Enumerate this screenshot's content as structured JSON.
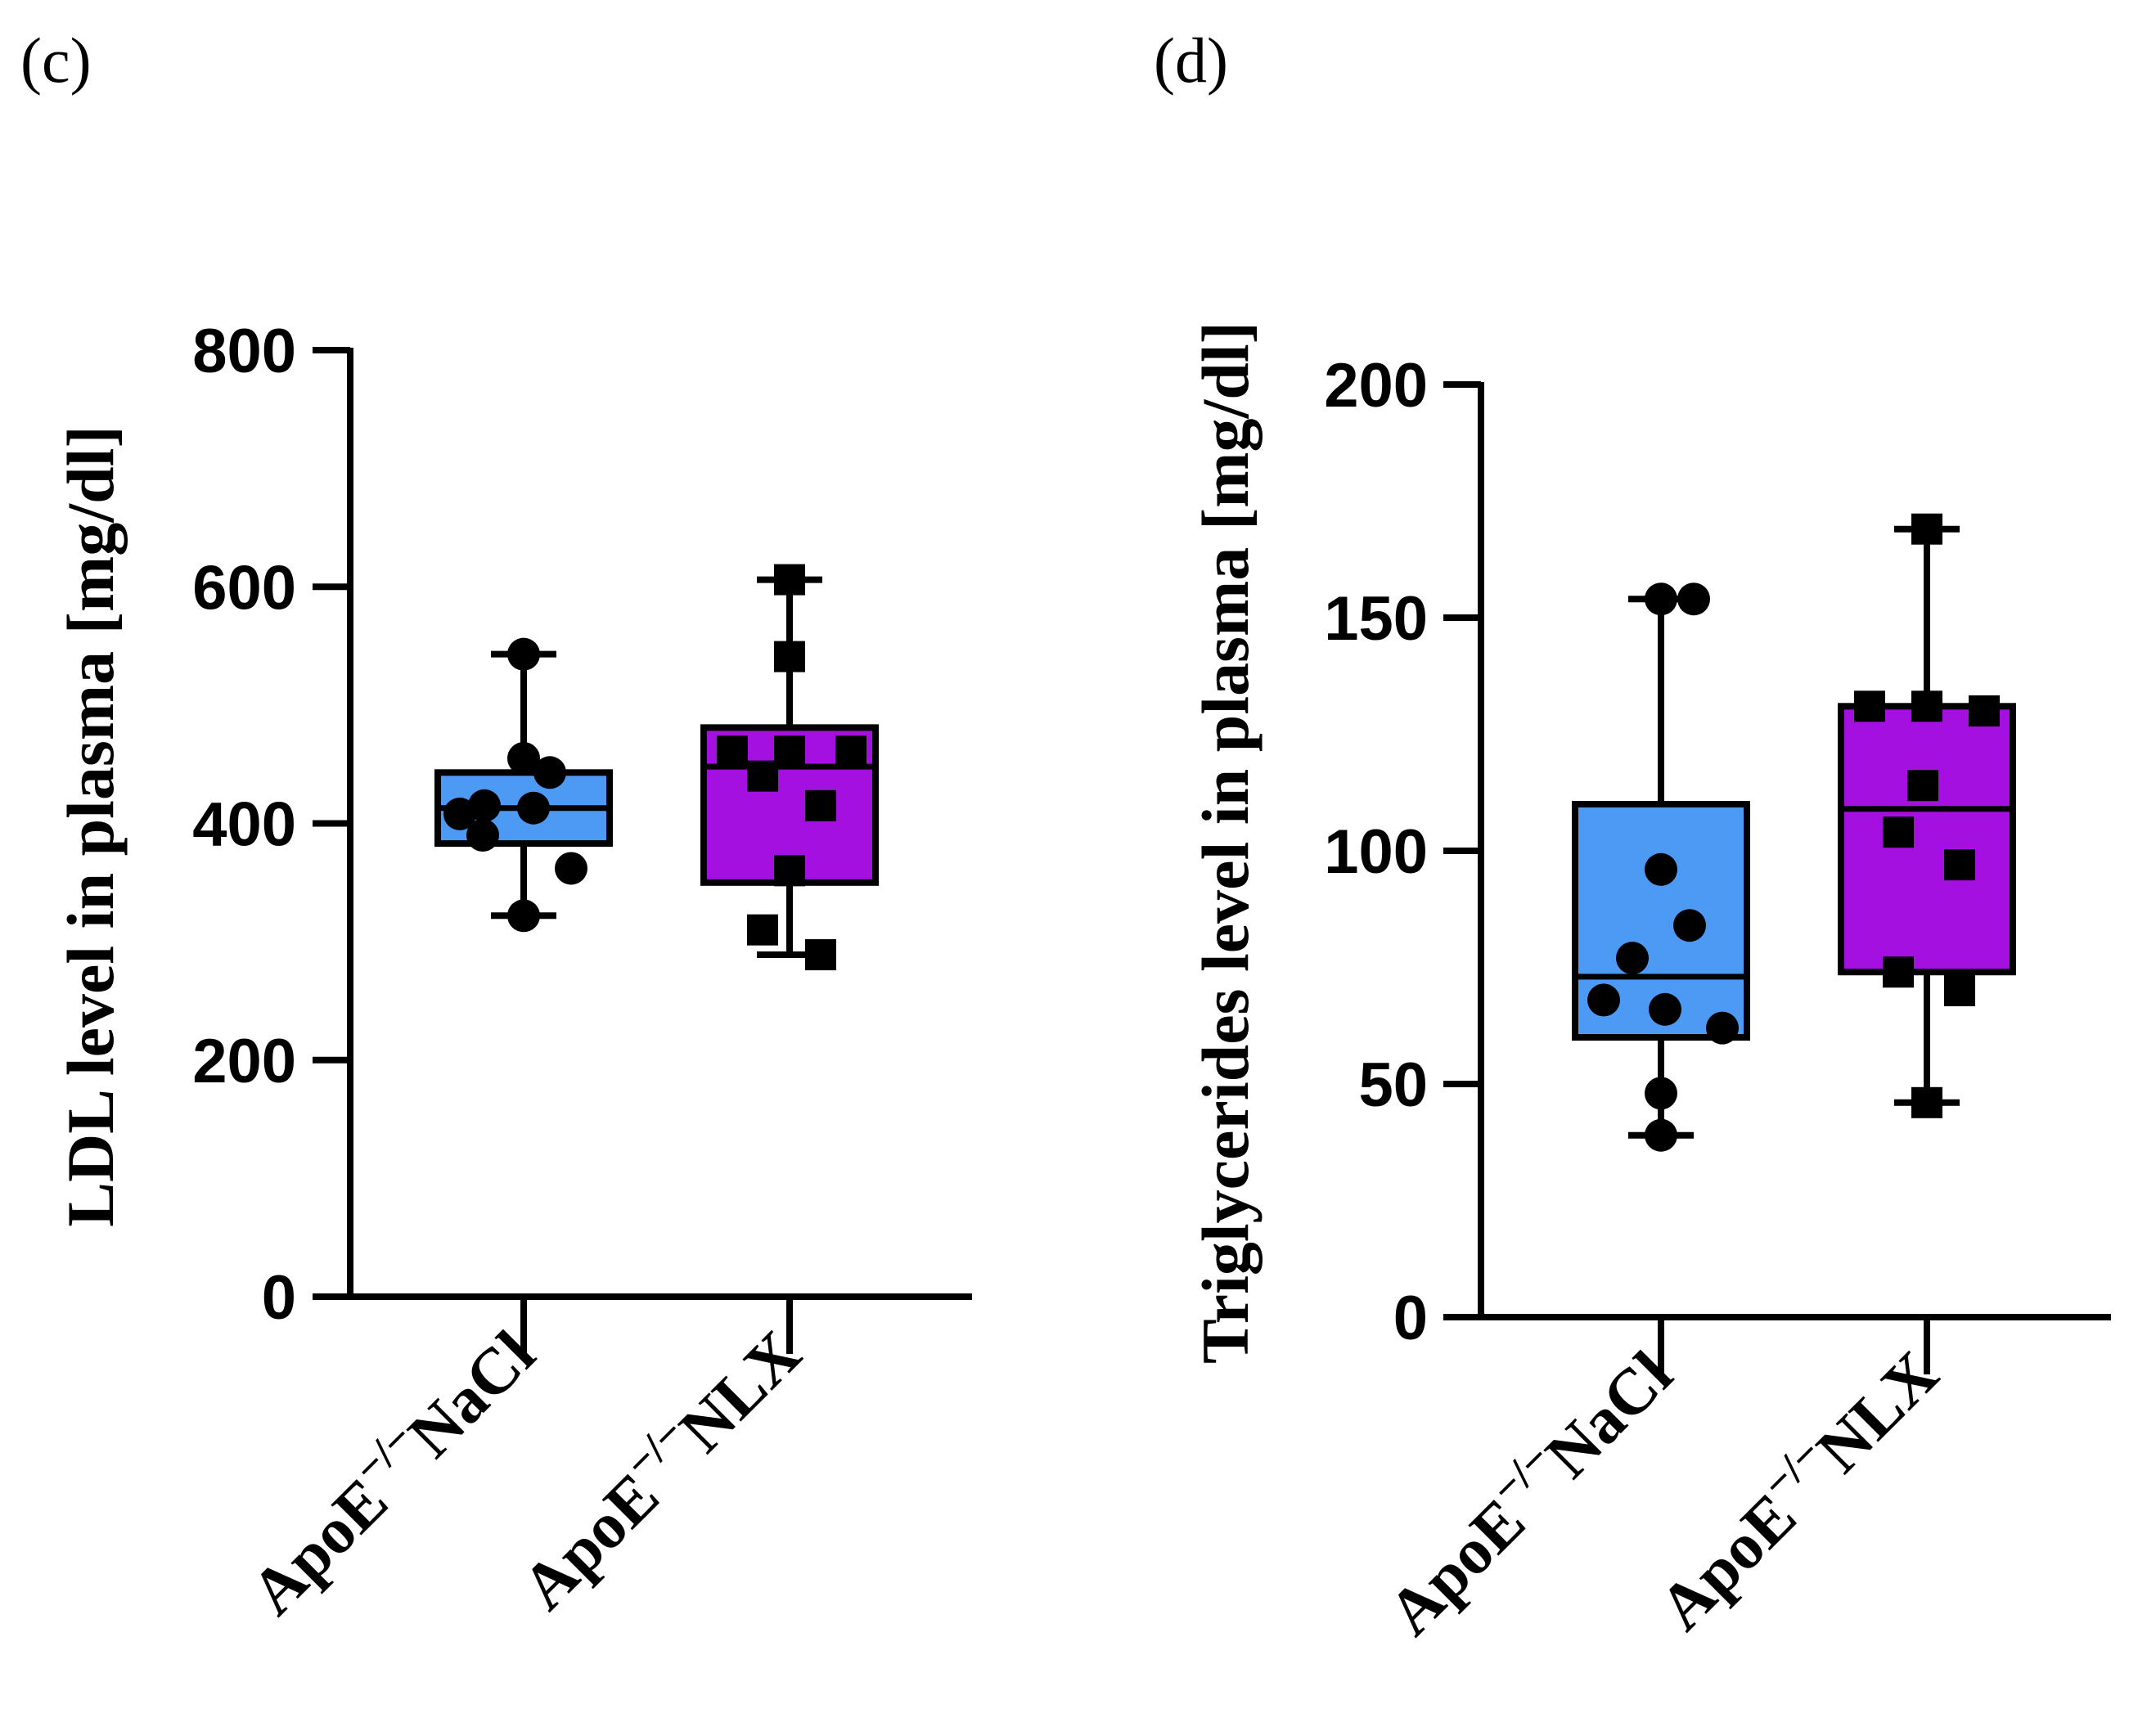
{
  "chart_data": [
    {
      "type": "box",
      "panel_label": "(c)",
      "ylabel": "LDL level in plasma [mg/dl]",
      "ylim": [
        0,
        800
      ],
      "yticks": [
        0,
        200,
        400,
        600,
        800
      ],
      "categories": [
        {
          "base": "ApoE",
          "sup": "−/−",
          "suffix": "NaCl"
        },
        {
          "base": "ApoE",
          "sup": "−/−",
          "suffix": "NLX"
        }
      ],
      "series": [
        {
          "name": "ApoE−/− NaCl",
          "color": "#4d9af5",
          "marker": "circle",
          "min": 322,
          "q1": 383,
          "median": 413,
          "q3": 443,
          "max": 543,
          "points": [
            543,
            455,
            443,
            415,
            413,
            408,
            390,
            362,
            322
          ]
        },
        {
          "name": "ApoE−/− NLX",
          "color": "#a410e0",
          "marker": "square",
          "min": 289,
          "q1": 350,
          "median": 448,
          "q3": 481,
          "max": 606,
          "points": [
            606,
            541,
            461,
            461,
            461,
            440,
            415,
            360,
            310,
            289
          ]
        }
      ]
    },
    {
      "type": "box",
      "panel_label": "(d)",
      "ylabel": "Triglycerides level in plasma [mg/dl]",
      "ylim": [
        0,
        200
      ],
      "yticks": [
        0,
        50,
        100,
        150,
        200
      ],
      "categories": [
        {
          "base": "ApoE",
          "sup": "−/−",
          "suffix": "NaCl"
        },
        {
          "base": "ApoE",
          "sup": "−/−",
          "suffix": "NLX"
        }
      ],
      "series": [
        {
          "name": "ApoE−/− NaCl",
          "color": "#4d9af5",
          "marker": "circle",
          "min": 39,
          "q1": 60,
          "median": 73,
          "q3": 110,
          "max": 154,
          "points": [
            154,
            154,
            96,
            84,
            77,
            68,
            66,
            62,
            48,
            39
          ]
        },
        {
          "name": "ApoE−/− NLX",
          "color": "#a410e0",
          "marker": "square",
          "min": 46,
          "q1": 74,
          "median": 109,
          "q3": 131,
          "max": 169,
          "points": [
            169,
            131,
            131,
            130,
            114,
            104,
            97,
            74,
            70,
            46
          ]
        }
      ]
    }
  ]
}
